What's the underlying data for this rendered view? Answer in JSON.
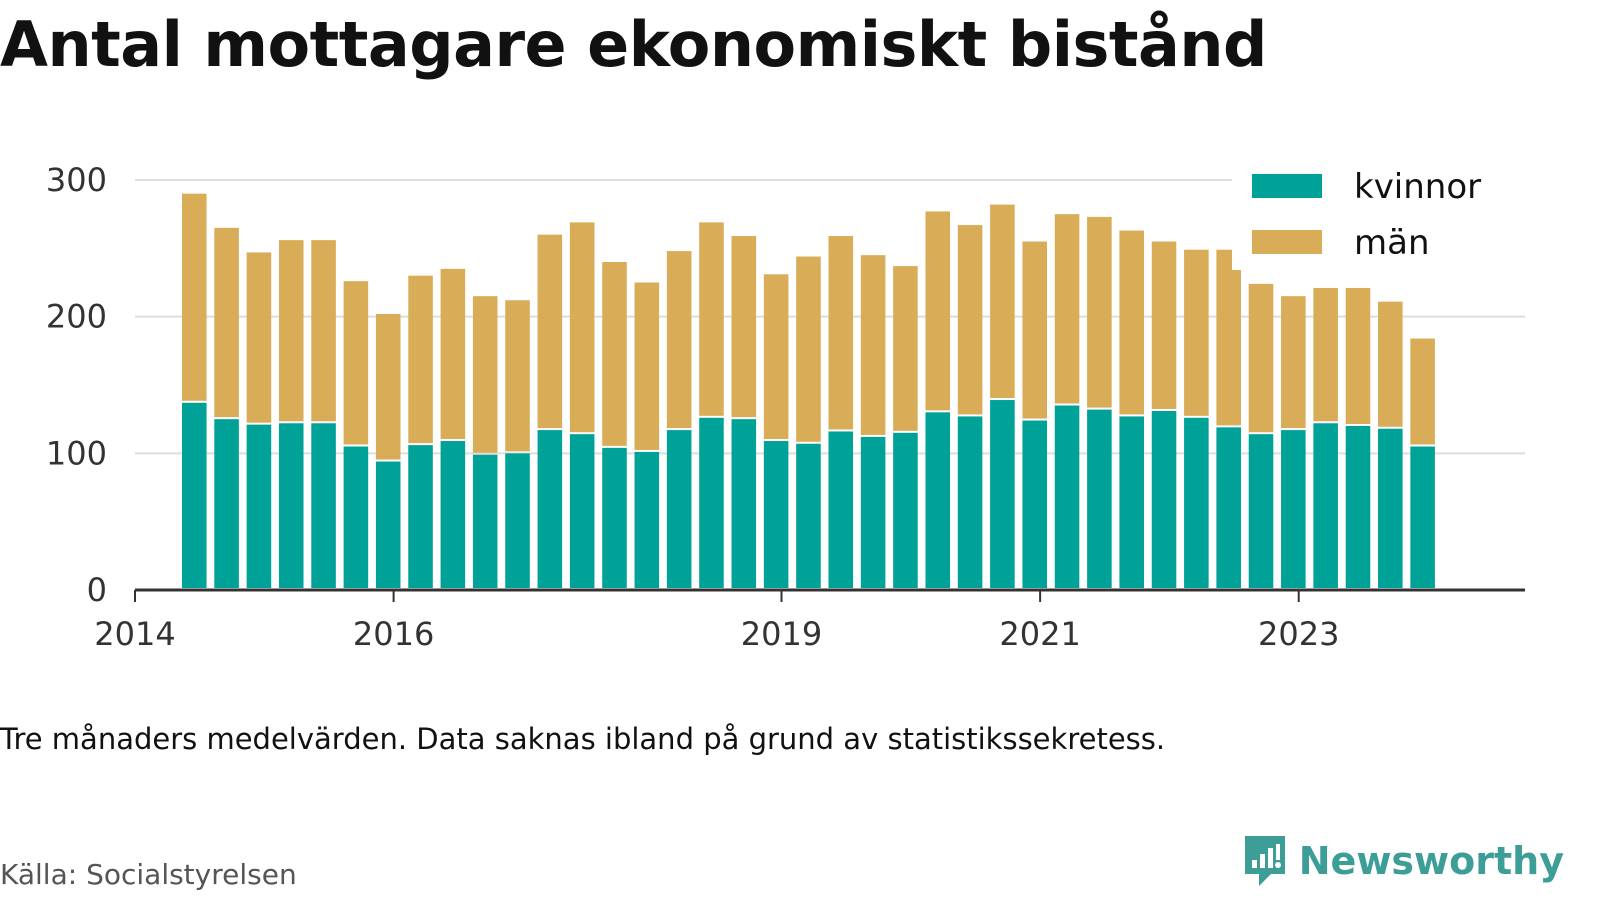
{
  "title": "Antal mottagare ekonomiskt bistånd",
  "note": "Tre månaders medelvärden. Data saknas ibland på grund av statistikssekretess.",
  "source": "Källa: Socialstyrelsen",
  "brand": {
    "name": "Newsworthy",
    "color": "#3c9e97"
  },
  "colors": {
    "kvinnor": "#00a298",
    "man": "#d9ac57",
    "grid": "#dddddd",
    "axis": "#333333"
  },
  "chart_data": {
    "type": "bar",
    "stacked": true,
    "title": "Antal mottagare ekonomiskt bistånd",
    "xlabel": "",
    "ylabel": "",
    "ylim": [
      0,
      300
    ],
    "yticks": [
      0,
      100,
      200,
      300
    ],
    "grid": true,
    "legend_position": "top-right",
    "x_tick_labels": [
      {
        "label": "2014",
        "x": "2014-01"
      },
      {
        "label": "2016",
        "x": "2016-01"
      },
      {
        "label": "2019",
        "x": "2019-01"
      },
      {
        "label": "2021",
        "x": "2021-01"
      },
      {
        "label": "2023",
        "x": "2023-01"
      }
    ],
    "x_range": [
      "2014-01",
      "2024-10"
    ],
    "categories": [
      "2014-05",
      "2014-08",
      "2014-11",
      "2015-02",
      "2015-05",
      "2015-08",
      "2015-11",
      "2016-02",
      "2016-05",
      "2016-08",
      "2016-11",
      "2017-02",
      "2017-05",
      "2017-08",
      "2017-11",
      "2018-02",
      "2018-05",
      "2018-08",
      "2018-11",
      "2019-02",
      "2019-05",
      "2019-08",
      "2019-11",
      "2020-02",
      "2020-05",
      "2020-08",
      "2020-11",
      "2021-02",
      "2021-05",
      "2021-08",
      "2021-11",
      "2022-02",
      "2022-05",
      "2022-08",
      "2022-11",
      "2023-02",
      "2023-05",
      "2023-08",
      "2023-11",
      "2024-02"
    ],
    "series": [
      {
        "name": "kvinnor",
        "values": [
          137,
          125,
          121,
          122,
          122,
          105,
          94,
          106,
          109,
          99,
          100,
          117,
          114,
          104,
          101,
          117,
          126,
          125,
          109,
          107,
          116,
          112,
          115,
          130,
          127,
          139,
          124,
          135,
          132,
          127,
          131,
          126,
          119,
          114,
          117,
          122,
          120,
          118,
          105,
          null
        ]
      },
      {
        "name": "män",
        "values": [
          153,
          140,
          126,
          134,
          134,
          121,
          108,
          124,
          126,
          116,
          112,
          143,
          155,
          136,
          124,
          131,
          143,
          134,
          122,
          137,
          143,
          133,
          122,
          147,
          140,
          143,
          131,
          140,
          141,
          136,
          124,
          123,
          130,
          110,
          98,
          99,
          101,
          93,
          79,
          null
        ]
      }
    ]
  },
  "legend": {
    "items": [
      {
        "label": "kvinnor"
      },
      {
        "label": "män"
      }
    ]
  }
}
